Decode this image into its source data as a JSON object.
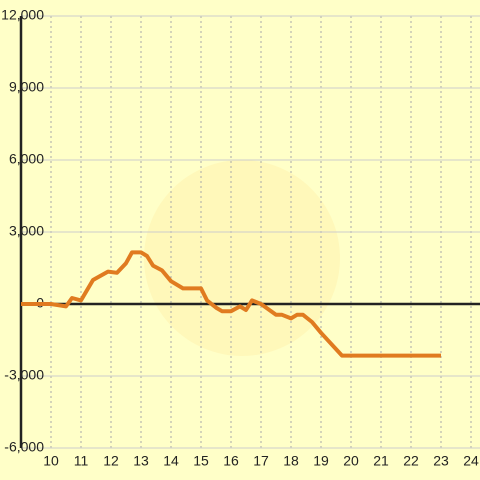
{
  "chart_data": {
    "type": "line",
    "x": [
      9.0,
      10.0,
      10.5,
      10.7,
      11.0,
      11.4,
      11.9,
      12.2,
      12.5,
      12.7,
      13.0,
      13.2,
      13.4,
      13.7,
      14.0,
      14.4,
      15.0,
      15.2,
      15.5,
      15.7,
      16.0,
      16.3,
      16.5,
      16.7,
      17.0,
      17.5,
      17.7,
      18.0,
      18.2,
      18.4,
      18.7,
      19.0,
      19.7,
      23.0
    ],
    "series": [
      {
        "color": "#e07b20",
        "values": [
          0,
          0,
          -100,
          250,
          150,
          1000,
          1350,
          1300,
          1700,
          2150,
          2150,
          2000,
          1600,
          1400,
          950,
          650,
          650,
          150,
          -150,
          -300,
          -300,
          -100,
          -250,
          150,
          0,
          -450,
          -450,
          -600,
          -450,
          -450,
          -750,
          -1200,
          -2150,
          -2150
        ]
      }
    ],
    "xlim": [
      9,
      24.3
    ],
    "xticks": [
      10,
      11,
      12,
      13,
      14,
      15,
      16,
      17,
      18,
      19,
      20,
      21,
      22,
      23,
      24
    ],
    "ylim": [
      -6000,
      12000
    ],
    "yticks": [
      {
        "value": -6000,
        "label": "-6,000"
      },
      {
        "value": -3000,
        "label": "-3,000"
      },
      0,
      {
        "value": 3000,
        "label": "3,000"
      },
      {
        "value": 6000,
        "label": "6,000"
      },
      {
        "value": 9000,
        "label": "9,000"
      },
      {
        "value": 12000,
        "label": "12,000"
      }
    ],
    "grid": true
  }
}
